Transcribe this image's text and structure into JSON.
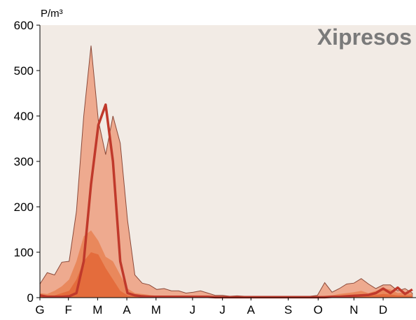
{
  "chart_data": {
    "type": "area",
    "title": "Xipresos",
    "y_label": "P/m³",
    "x": [
      0,
      1,
      2,
      3,
      4,
      5,
      6,
      7,
      8,
      9,
      10,
      11,
      12,
      13,
      14,
      15,
      16,
      17,
      18,
      19,
      20,
      21,
      22,
      23,
      24,
      25,
      26,
      27,
      28,
      29,
      30,
      31,
      32,
      33,
      34,
      35,
      36,
      37,
      38,
      39,
      40,
      41,
      42,
      43,
      44,
      45,
      46,
      47,
      48,
      49,
      50,
      51
    ],
    "xlim": [
      0,
      51.5
    ],
    "xticks": [
      {
        "value": 0,
        "label": "G"
      },
      {
        "value": 3.9,
        "label": "F"
      },
      {
        "value": 7.9,
        "label": "M"
      },
      {
        "value": 11.9,
        "label": "A"
      },
      {
        "value": 15.9,
        "label": "M"
      },
      {
        "value": 20.9,
        "label": "J"
      },
      {
        "value": 25,
        "label": "J"
      },
      {
        "value": 28.9,
        "label": "A"
      },
      {
        "value": 34,
        "label": "S"
      },
      {
        "value": 38.1,
        "label": "O"
      },
      {
        "value": 43,
        "label": "N"
      },
      {
        "value": 47,
        "label": "D"
      }
    ],
    "ylim": [
      0,
      600
    ],
    "yticks": [
      0,
      100,
      200,
      300,
      400,
      500,
      600
    ],
    "series": [
      {
        "color": "#eda68a",
        "kind": "area",
        "values": [
          30,
          55,
          50,
          78,
          80,
          190,
          400,
          555,
          390,
          315,
          400,
          340,
          170,
          50,
          32,
          28,
          18,
          20,
          15,
          15,
          10,
          12,
          15,
          10,
          5,
          5,
          3,
          4,
          3,
          3,
          3,
          3,
          3,
          3,
          3,
          3,
          3,
          3,
          5,
          33,
          12,
          20,
          30,
          32,
          42,
          30,
          20,
          28,
          28,
          15,
          20,
          10
        ]
      },
      {
        "color": "#e8865a",
        "kind": "area",
        "values": [
          10,
          8,
          15,
          25,
          40,
          80,
          135,
          148,
          125,
          90,
          80,
          50,
          20,
          10,
          8,
          6,
          4,
          4,
          3,
          3,
          3,
          3,
          3,
          3,
          2,
          2,
          2,
          2,
          2,
          2,
          2,
          2,
          2,
          2,
          2,
          2,
          2,
          2,
          3,
          4,
          5,
          8,
          10,
          12,
          15,
          10,
          15,
          20,
          18,
          10,
          12,
          8
        ]
      },
      {
        "color": "#e46a3a",
        "kind": "area",
        "values": [
          3,
          5,
          5,
          10,
          15,
          40,
          80,
          100,
          95,
          65,
          40,
          15,
          5,
          3,
          2,
          2,
          2,
          2,
          2,
          2,
          2,
          2,
          2,
          2,
          1,
          1,
          1,
          1,
          1,
          1,
          1,
          1,
          1,
          1,
          1,
          1,
          1,
          1,
          1,
          2,
          2,
          3,
          4,
          5,
          6,
          5,
          6,
          8,
          7,
          5,
          5,
          4
        ]
      },
      {
        "color": "#c0392b",
        "kind": "line",
        "values": [
          5,
          2,
          2,
          2,
          3,
          10,
          80,
          250,
          380,
          425,
          300,
          80,
          10,
          5,
          3,
          2,
          2,
          2,
          2,
          2,
          2,
          2,
          2,
          2,
          1,
          1,
          1,
          1,
          1,
          1,
          1,
          1,
          1,
          1,
          1,
          1,
          1,
          1,
          1,
          1,
          2,
          2,
          3,
          4,
          5,
          6,
          10,
          20,
          10,
          22,
          8,
          18
        ]
      }
    ]
  }
}
